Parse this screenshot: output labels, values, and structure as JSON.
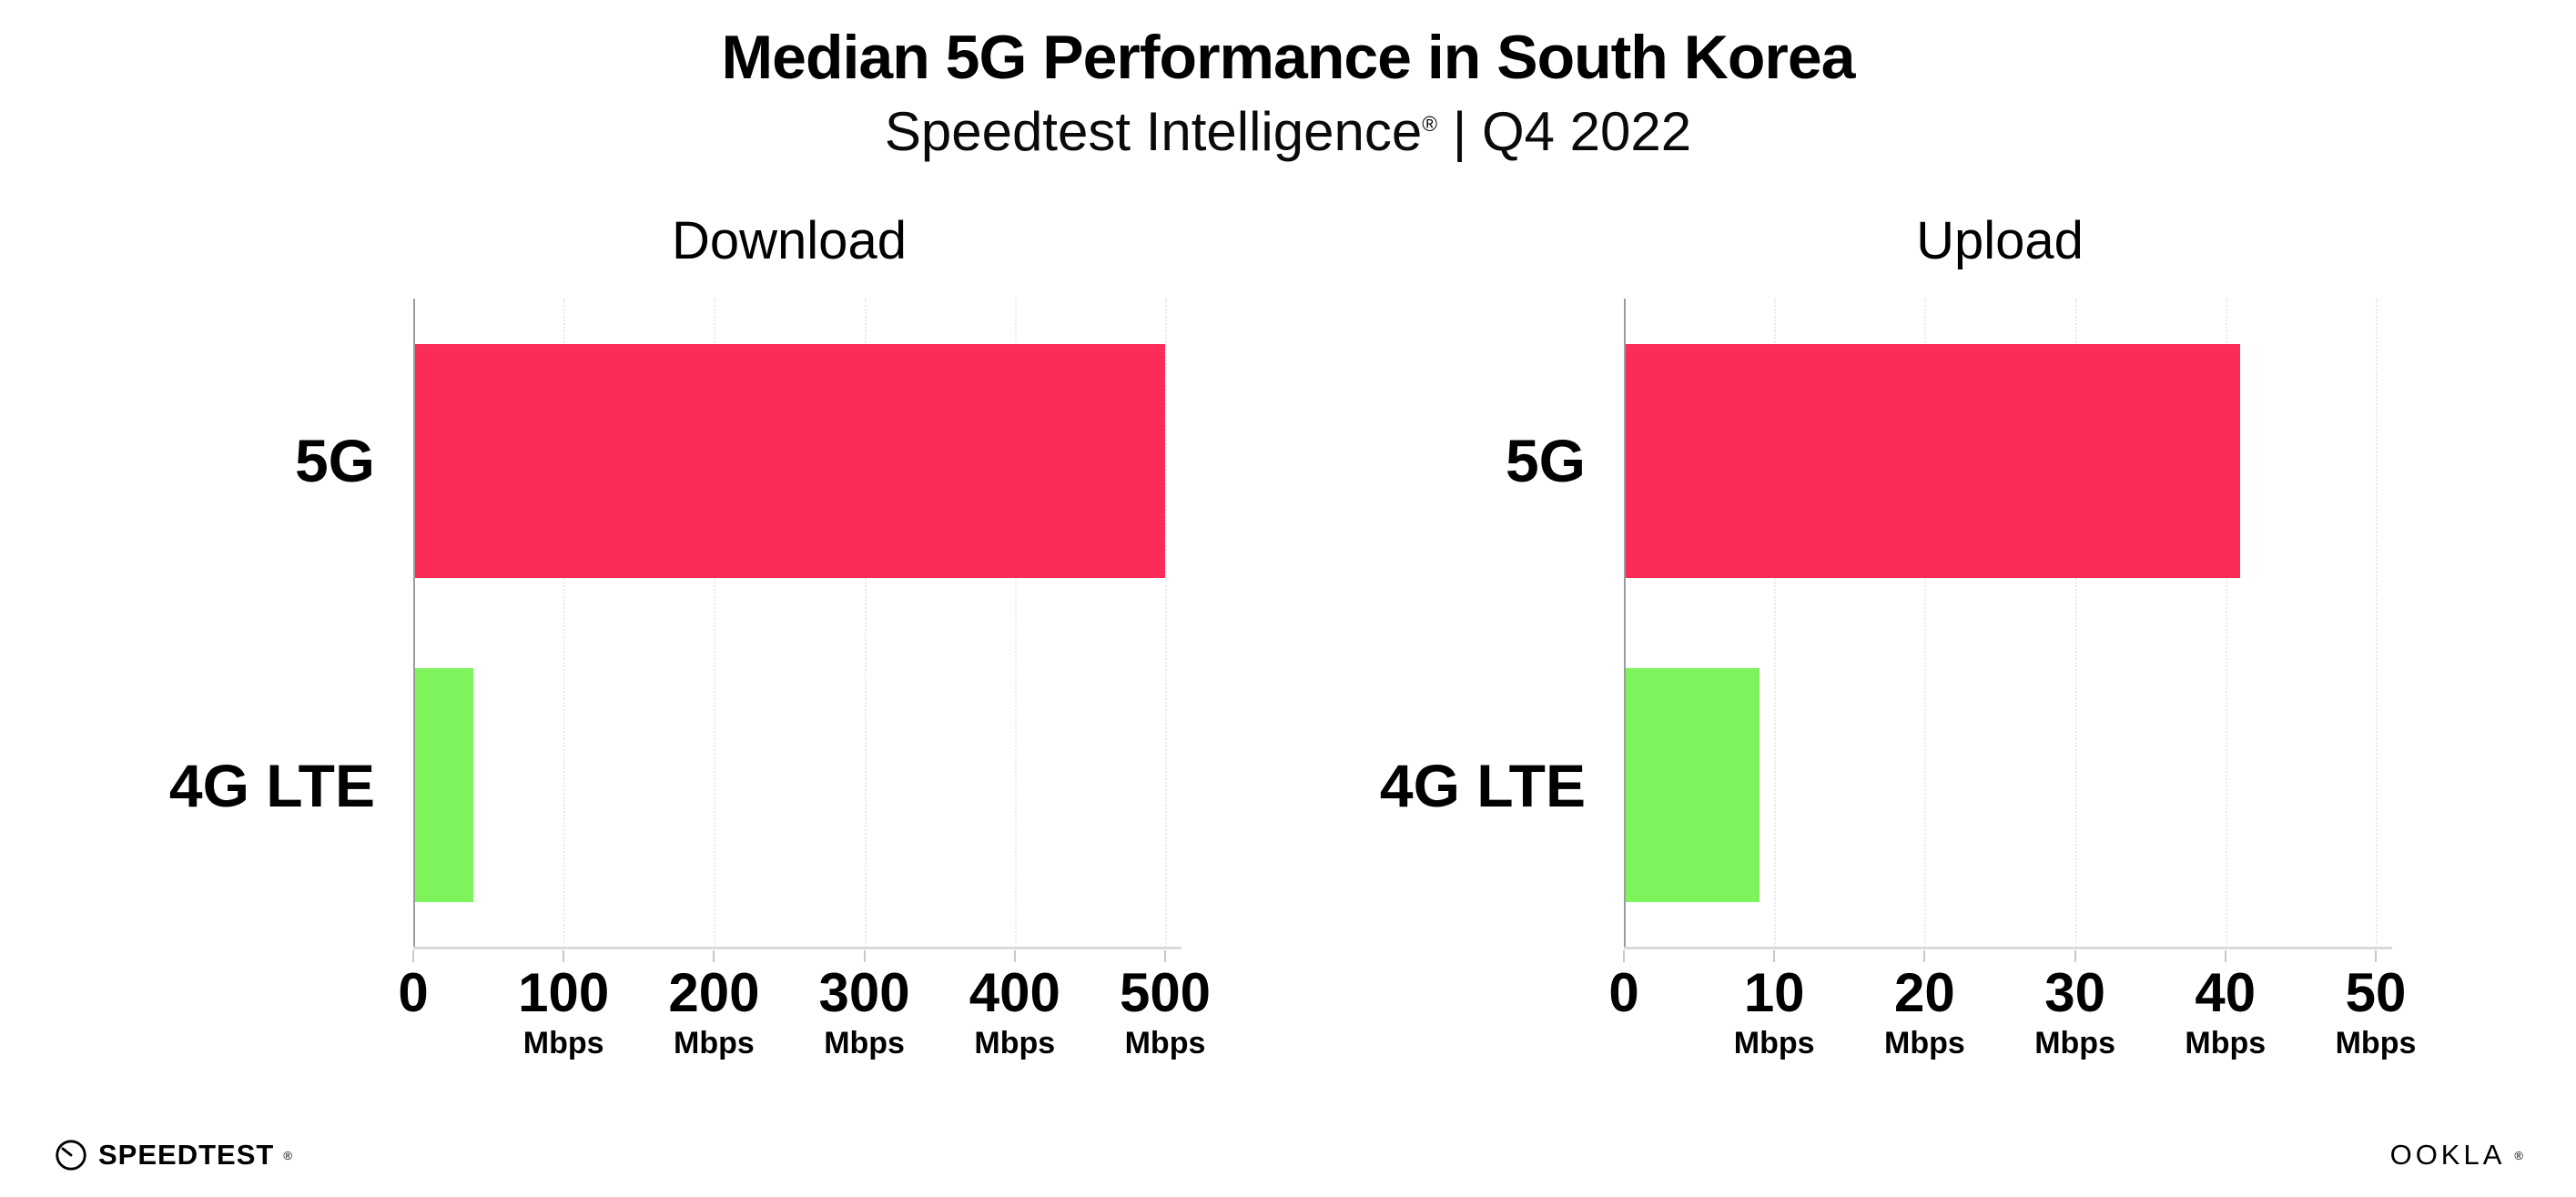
{
  "header": {
    "title": "Median 5G Performance in South Korea",
    "subtitle": {
      "brand": "Speedtest Intelligence",
      "mark": "®",
      "rest": " | Q4 2022"
    }
  },
  "chart_data": [
    {
      "type": "bar",
      "orientation": "horizontal",
      "title": "Download",
      "categories": [
        "5G",
        "4G LTE"
      ],
      "values": [
        500,
        40
      ],
      "unit": "Mbps",
      "xlim": [
        0,
        500
      ],
      "xticks": [
        0,
        100,
        200,
        300,
        400,
        500
      ],
      "tick_unit_label": "Mbps",
      "bar_colors": [
        "#FB2C57",
        "#7DF35C"
      ],
      "grid": "faint dotted vertical gridlines",
      "legend": "none"
    },
    {
      "type": "bar",
      "orientation": "horizontal",
      "title": "Upload",
      "categories": [
        "5G",
        "4G LTE"
      ],
      "values": [
        41,
        9
      ],
      "unit": "Mbps",
      "xlim": [
        0,
        50
      ],
      "xticks": [
        0,
        10,
        20,
        30,
        40,
        50
      ],
      "tick_unit_label": "Mbps",
      "bar_colors": [
        "#FB2C57",
        "#7DF35C"
      ],
      "grid": "faint dotted vertical gridlines",
      "legend": "none"
    }
  ],
  "footer": {
    "speedtest_label": "SPEEDTEST",
    "speedtest_mark": "®",
    "ookla_label": "OOKLA",
    "ookla_mark": "®"
  },
  "colors": {
    "bar_5g": "#FB2C57",
    "bar_4g_lte": "#7DF35C",
    "axis": "#9C9C9C",
    "baseline": "#DADADA",
    "gridline": "#EAEAEA",
    "text": "#000000",
    "background": "#FFFFFF"
  }
}
